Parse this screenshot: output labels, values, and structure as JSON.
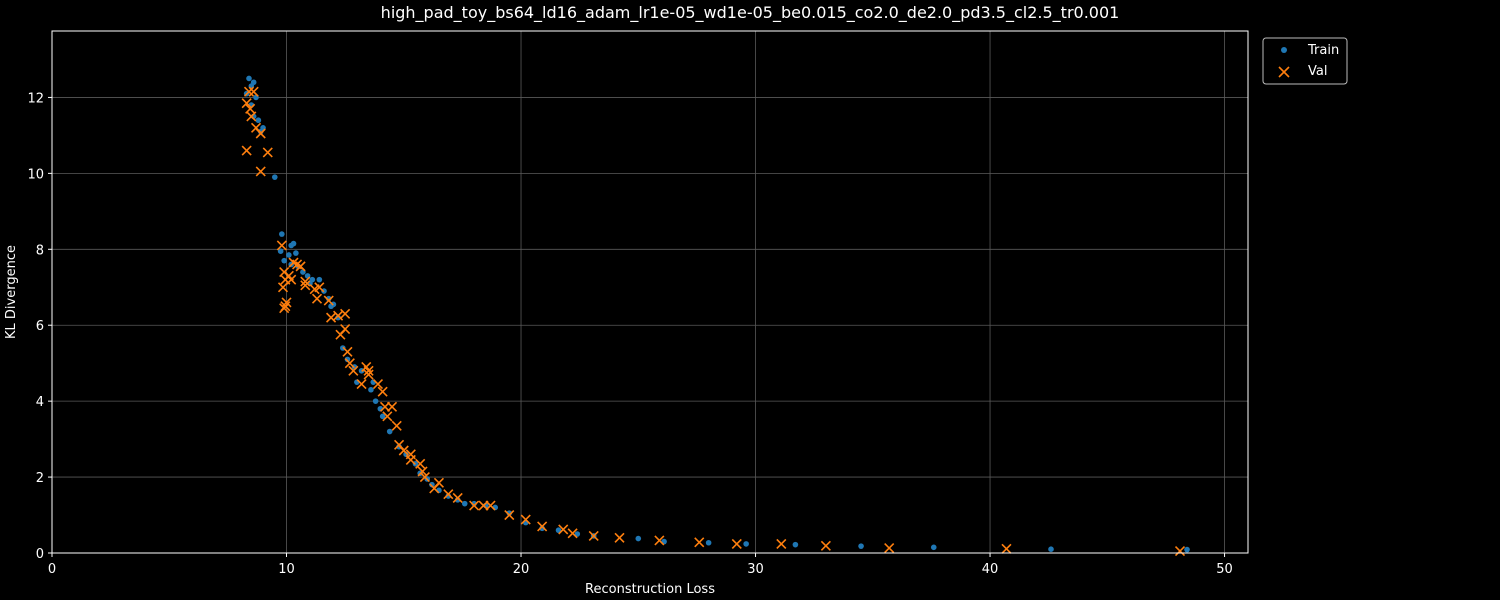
{
  "chart_data": {
    "type": "scatter",
    "title": "high_pad_toy_bs64_ld16_adam_lr1e-05_wd1e-05_be0.015_co2.0_de2.0_pd3.5_cl2.5_tr0.001",
    "xlabel": "Reconstruction Loss",
    "ylabel": "KL Divergence",
    "xlim": [
      0,
      51
    ],
    "ylim": [
      0,
      13.75
    ],
    "xticks": [
      0,
      10,
      20,
      30,
      40,
      50
    ],
    "yticks": [
      0,
      2,
      4,
      6,
      8,
      10,
      12
    ],
    "grid": true,
    "legend": "upper-right-outside",
    "colors": {
      "train": "#1f77b4",
      "val": "#ff7f0e",
      "background": "#000000",
      "foreground": "#ffffff"
    },
    "series": [
      {
        "name": "Train",
        "marker": "dot",
        "points": [
          [
            8.4,
            12.5
          ],
          [
            8.6,
            12.4
          ],
          [
            8.5,
            12.3
          ],
          [
            8.3,
            12.1
          ],
          [
            8.7,
            12.0
          ],
          [
            8.5,
            11.8
          ],
          [
            8.6,
            11.5
          ],
          [
            8.8,
            11.4
          ],
          [
            9.0,
            11.2
          ],
          [
            8.9,
            11.1
          ],
          [
            9.5,
            9.9
          ],
          [
            9.8,
            8.4
          ],
          [
            10.3,
            8.15
          ],
          [
            10.2,
            8.1
          ],
          [
            9.75,
            7.95
          ],
          [
            10.4,
            7.9
          ],
          [
            10.1,
            7.85
          ],
          [
            9.9,
            7.7
          ],
          [
            10.2,
            7.6
          ],
          [
            10.5,
            7.55
          ],
          [
            10.7,
            7.4
          ],
          [
            10.9,
            7.3
          ],
          [
            11.1,
            7.2
          ],
          [
            11.4,
            7.2
          ],
          [
            11.0,
            7.1
          ],
          [
            11.6,
            6.9
          ],
          [
            11.8,
            6.7
          ],
          [
            12.0,
            6.55
          ],
          [
            11.9,
            6.5
          ],
          [
            12.2,
            6.2
          ],
          [
            12.4,
            5.4
          ],
          [
            12.6,
            5.1
          ],
          [
            12.9,
            4.9
          ],
          [
            13.2,
            4.8
          ],
          [
            13.0,
            4.5
          ],
          [
            13.7,
            4.5
          ],
          [
            13.6,
            4.3
          ],
          [
            13.8,
            4.0
          ],
          [
            14.0,
            3.8
          ],
          [
            14.1,
            3.6
          ],
          [
            14.4,
            3.2
          ],
          [
            14.8,
            2.8
          ],
          [
            15.1,
            2.6
          ],
          [
            15.5,
            2.35
          ],
          [
            15.7,
            2.1
          ],
          [
            16.0,
            1.95
          ],
          [
            16.2,
            1.8
          ],
          [
            16.5,
            1.65
          ],
          [
            16.9,
            1.5
          ],
          [
            17.3,
            1.4
          ],
          [
            17.6,
            1.3
          ],
          [
            18.0,
            1.3
          ],
          [
            18.5,
            1.25
          ],
          [
            18.9,
            1.2
          ],
          [
            19.5,
            1.05
          ],
          [
            20.2,
            0.8
          ],
          [
            20.9,
            0.65
          ],
          [
            21.6,
            0.6
          ],
          [
            22.4,
            0.5
          ],
          [
            23.1,
            0.45
          ],
          [
            25.0,
            0.38
          ],
          [
            26.1,
            0.3
          ],
          [
            28.0,
            0.27
          ],
          [
            29.6,
            0.24
          ],
          [
            31.7,
            0.22
          ],
          [
            34.5,
            0.18
          ],
          [
            37.6,
            0.15
          ],
          [
            42.6,
            0.1
          ],
          [
            48.4,
            0.09
          ]
        ]
      },
      {
        "name": "Val",
        "marker": "x",
        "points": [
          [
            8.4,
            12.15
          ],
          [
            8.6,
            12.15
          ],
          [
            8.3,
            11.85
          ],
          [
            8.45,
            11.7
          ],
          [
            8.5,
            11.5
          ],
          [
            8.7,
            11.2
          ],
          [
            8.9,
            11.05
          ],
          [
            8.3,
            10.6
          ],
          [
            9.2,
            10.55
          ],
          [
            8.9,
            10.05
          ],
          [
            9.8,
            8.1
          ],
          [
            10.3,
            7.65
          ],
          [
            10.45,
            7.6
          ],
          [
            10.6,
            7.55
          ],
          [
            9.9,
            7.4
          ],
          [
            10.1,
            7.3
          ],
          [
            9.95,
            7.2
          ],
          [
            10.2,
            7.2
          ],
          [
            10.8,
            7.15
          ],
          [
            10.8,
            7.05
          ],
          [
            9.85,
            7.0
          ],
          [
            11.4,
            7.0
          ],
          [
            11.2,
            6.95
          ],
          [
            11.3,
            6.7
          ],
          [
            11.8,
            6.65
          ],
          [
            10.0,
            6.6
          ],
          [
            9.9,
            6.45
          ],
          [
            9.95,
            6.5
          ],
          [
            12.5,
            6.3
          ],
          [
            12.2,
            6.25
          ],
          [
            11.9,
            6.2
          ],
          [
            12.5,
            5.9
          ],
          [
            12.3,
            5.75
          ],
          [
            12.6,
            5.3
          ],
          [
            12.7,
            5.0
          ],
          [
            12.85,
            4.8
          ],
          [
            13.4,
            4.9
          ],
          [
            13.5,
            4.8
          ],
          [
            13.5,
            4.7
          ],
          [
            13.2,
            4.45
          ],
          [
            13.9,
            4.45
          ],
          [
            14.1,
            4.25
          ],
          [
            14.2,
            3.85
          ],
          [
            14.5,
            3.85
          ],
          [
            14.3,
            3.6
          ],
          [
            14.7,
            3.35
          ],
          [
            14.8,
            2.85
          ],
          [
            15.0,
            2.7
          ],
          [
            15.3,
            2.6
          ],
          [
            15.3,
            2.45
          ],
          [
            15.7,
            2.35
          ],
          [
            15.8,
            2.15
          ],
          [
            15.9,
            2.0
          ],
          [
            16.5,
            1.85
          ],
          [
            16.3,
            1.7
          ],
          [
            16.9,
            1.55
          ],
          [
            17.3,
            1.45
          ],
          [
            18.0,
            1.25
          ],
          [
            18.4,
            1.25
          ],
          [
            18.7,
            1.25
          ],
          [
            19.5,
            1.0
          ],
          [
            20.2,
            0.88
          ],
          [
            20.9,
            0.7
          ],
          [
            21.8,
            0.62
          ],
          [
            22.2,
            0.52
          ],
          [
            23.1,
            0.45
          ],
          [
            24.2,
            0.4
          ],
          [
            25.9,
            0.33
          ],
          [
            27.6,
            0.28
          ],
          [
            29.2,
            0.24
          ],
          [
            31.1,
            0.24
          ],
          [
            33.0,
            0.19
          ],
          [
            35.7,
            0.13
          ],
          [
            40.7,
            0.11
          ],
          [
            48.1,
            0.05
          ]
        ]
      }
    ]
  }
}
